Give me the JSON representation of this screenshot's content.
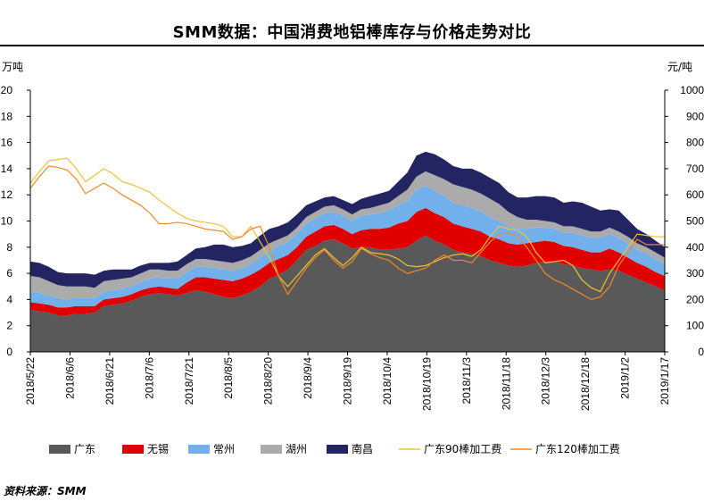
{
  "title": "SMM数据：中国消费地铝棒库存与价格走势对比",
  "source": "资料来源：SMM",
  "chart_data": {
    "type": "area",
    "left_unit": "万吨",
    "right_unit": "元/吨",
    "ylim_left": [
      0,
      20
    ],
    "ylim_right": [
      0,
      1000
    ],
    "yticks_left": [
      0,
      2,
      4,
      6,
      8,
      10,
      12,
      14,
      16,
      18,
      20
    ],
    "yticks_right": [
      0,
      100,
      200,
      300,
      400,
      500,
      600,
      700,
      800,
      900,
      1000
    ],
    "x_tick_labels": [
      "2018/5/22",
      "2018/6/6",
      "2018/6/21",
      "2018/7/6",
      "2018/7/21",
      "2018/8/5",
      "2018/8/20",
      "2018/9/4",
      "2018/9/19",
      "2018/10/4",
      "2018/10/19",
      "2018/11/3",
      "2018/11/18",
      "2018/12/3",
      "2018/12/18",
      "2019/1/2",
      "2019/1/17"
    ],
    "x": [
      "2018/5/22",
      "2018/5/26",
      "2018/5/29",
      "2018/6/1",
      "2018/6/5",
      "2018/6/8",
      "2018/6/12",
      "2018/6/15",
      "2018/6/19",
      "2018/6/22",
      "2018/6/26",
      "2018/6/29",
      "2018/7/3",
      "2018/7/6",
      "2018/7/10",
      "2018/7/13",
      "2018/7/17",
      "2018/7/20",
      "2018/7/24",
      "2018/7/27",
      "2018/7/31",
      "2018/8/3",
      "2018/8/7",
      "2018/8/10",
      "2018/8/14",
      "2018/8/17",
      "2018/8/21",
      "2018/8/24",
      "2018/8/28",
      "2018/8/31",
      "2018/9/4",
      "2018/9/7",
      "2018/9/11",
      "2018/9/14",
      "2018/9/18",
      "2018/9/21",
      "2018/9/25",
      "2018/9/28",
      "2018/10/2",
      "2018/10/5",
      "2018/10/9",
      "2018/10/12",
      "2018/10/16",
      "2018/10/19",
      "2018/10/23",
      "2018/10/26",
      "2018/10/30",
      "2018/11/2",
      "2018/11/6",
      "2018/11/9",
      "2018/11/13",
      "2018/11/16",
      "2018/11/20",
      "2018/11/23",
      "2018/11/27",
      "2018/11/30",
      "2018/12/4",
      "2018/12/7",
      "2018/12/11",
      "2018/12/14",
      "2018/12/18",
      "2018/12/21",
      "2018/12/25",
      "2018/12/28",
      "2019/1/1",
      "2019/1/4",
      "2019/1/8",
      "2019/1/11",
      "2019/1/15",
      "2019/1/18"
    ],
    "series": [
      {
        "name": "广东",
        "kind": "area",
        "axis": "left",
        "color": "#595959",
        "values": [
          3.2,
          3.1,
          3.0,
          2.8,
          2.8,
          2.9,
          2.9,
          3.0,
          3.5,
          3.6,
          3.7,
          3.9,
          4.2,
          4.4,
          4.5,
          4.4,
          4.3,
          4.5,
          4.7,
          4.6,
          4.4,
          4.2,
          4.1,
          4.3,
          4.6,
          5.0,
          5.6,
          5.9,
          6.3,
          7.0,
          7.8,
          8.1,
          8.5,
          8.6,
          8.3,
          7.9,
          8.0,
          8.0,
          7.8,
          7.8,
          7.9,
          8.0,
          8.5,
          8.9,
          8.5,
          8.2,
          7.8,
          7.6,
          7.5,
          7.3,
          7.0,
          6.8,
          6.6,
          6.5,
          6.6,
          6.8,
          6.9,
          6.9,
          6.7,
          6.6,
          6.4,
          6.3,
          6.2,
          6.3,
          6.2,
          5.9,
          5.6,
          5.3,
          5.0,
          4.7
        ]
      },
      {
        "name": "无锡",
        "kind": "area",
        "axis": "left",
        "color": "#e00000",
        "values": [
          0.6,
          0.6,
          0.6,
          0.6,
          0.6,
          0.6,
          0.6,
          0.5,
          0.5,
          0.5,
          0.5,
          0.5,
          0.5,
          0.5,
          0.5,
          0.5,
          0.5,
          0.8,
          1.0,
          1.1,
          1.2,
          1.3,
          1.3,
          1.3,
          1.3,
          1.3,
          1.2,
          1.2,
          1.1,
          1.0,
          1.0,
          1.1,
          1.1,
          1.1,
          1.1,
          1.1,
          1.3,
          1.4,
          1.6,
          1.7,
          1.9,
          2.0,
          2.2,
          2.1,
          2.1,
          2.1,
          2.0,
          2.0,
          1.9,
          1.9,
          1.8,
          1.8,
          1.7,
          1.7,
          1.7,
          1.6,
          1.6,
          1.5,
          1.4,
          1.4,
          1.4,
          1.3,
          1.4,
          1.6,
          1.4,
          1.3,
          1.2,
          1.2,
          1.1,
          1.1
        ]
      },
      {
        "name": "常州",
        "kind": "area",
        "axis": "left",
        "color": "#72b0ec",
        "values": [
          0.8,
          0.8,
          0.7,
          0.7,
          0.6,
          0.6,
          0.6,
          0.6,
          0.6,
          0.6,
          0.6,
          0.6,
          0.6,
          0.7,
          0.7,
          0.7,
          0.8,
          0.8,
          0.8,
          0.8,
          0.8,
          0.8,
          0.8,
          0.8,
          0.8,
          0.9,
          0.9,
          1.0,
          1.0,
          1.0,
          1.0,
          1.0,
          1.0,
          1.0,
          1.0,
          1.0,
          1.1,
          1.1,
          1.2,
          1.3,
          1.4,
          1.5,
          1.7,
          1.7,
          1.7,
          1.6,
          1.6,
          1.6,
          1.6,
          1.5,
          1.5,
          1.4,
          1.3,
          1.2,
          1.1,
          1.1,
          1.0,
          1.0,
          1.0,
          1.1,
          1.1,
          1.1,
          1.1,
          1.1,
          1.1,
          1.1,
          1.0,
          1.0,
          1.0,
          0.9
        ]
      },
      {
        "name": "湖州",
        "kind": "area",
        "axis": "left",
        "color": "#ababab",
        "values": [
          1.2,
          1.2,
          1.1,
          1.0,
          1.0,
          0.9,
          0.9,
          0.8,
          0.8,
          0.8,
          0.8,
          0.7,
          0.7,
          0.7,
          0.6,
          0.6,
          0.6,
          0.6,
          0.6,
          0.6,
          0.6,
          0.6,
          0.6,
          0.6,
          0.6,
          0.6,
          0.6,
          0.5,
          0.5,
          0.5,
          0.5,
          0.5,
          0.5,
          0.5,
          0.5,
          0.5,
          0.5,
          0.5,
          0.6,
          0.6,
          0.7,
          0.9,
          1.0,
          1.1,
          1.2,
          1.3,
          1.4,
          1.4,
          1.4,
          1.4,
          1.4,
          1.3,
          1.1,
          0.9,
          0.7,
          0.6,
          0.5,
          0.5,
          0.5,
          0.5,
          0.5,
          0.5,
          0.5,
          0.5,
          0.5,
          0.5,
          0.5,
          0.5,
          0.5,
          0.5
        ]
      },
      {
        "name": "南昌",
        "kind": "area",
        "axis": "left",
        "color": "#232462",
        "values": [
          1.1,
          1.1,
          1.1,
          1.0,
          1.0,
          1.0,
          1.0,
          1.0,
          0.8,
          0.8,
          0.7,
          0.6,
          0.6,
          0.5,
          0.5,
          0.6,
          0.7,
          0.7,
          0.8,
          0.9,
          1.2,
          1.3,
          1.2,
          1.1,
          1.0,
          1.1,
          1.1,
          1.0,
          1.0,
          1.0,
          0.9,
          0.8,
          0.7,
          0.7,
          0.7,
          0.8,
          0.8,
          0.9,
          0.9,
          0.9,
          1.1,
          1.3,
          1.6,
          1.5,
          1.6,
          1.5,
          1.4,
          1.4,
          1.6,
          1.6,
          1.6,
          1.6,
          1.5,
          1.5,
          1.7,
          1.8,
          1.9,
          1.9,
          1.8,
          1.9,
          2.0,
          1.9,
          1.6,
          1.4,
          1.6,
          1.3,
          1.1,
          1.0,
          0.9,
          0.8
        ]
      },
      {
        "name": "广东90棒加工费",
        "kind": "line",
        "axis": "right",
        "color": "#f1c232",
        "values": [
          645,
          690,
          730,
          735,
          740,
          700,
          650,
          675,
          700,
          680,
          650,
          640,
          625,
          610,
          580,
          555,
          530,
          510,
          500,
          495,
          490,
          480,
          440,
          440,
          480,
          420,
          360,
          290,
          250,
          290,
          330,
          370,
          395,
          360,
          330,
          360,
          400,
          380,
          375,
          370,
          355,
          330,
          325,
          330,
          345,
          360,
          370,
          375,
          365,
          390,
          440,
          480,
          470,
          465,
          440,
          380,
          340,
          345,
          350,
          330,
          275,
          245,
          230,
          300,
          350,
          400,
          450,
          445,
          440,
          440
        ]
      },
      {
        "name": "广东120棒加工费",
        "kind": "line",
        "axis": "right",
        "color": "#f08a24",
        "values": [
          625,
          670,
          710,
          705,
          695,
          660,
          605,
          625,
          645,
          625,
          600,
          580,
          560,
          530,
          490,
          490,
          495,
          490,
          480,
          470,
          465,
          460,
          430,
          440,
          470,
          480,
          400,
          290,
          220,
          270,
          320,
          360,
          390,
          350,
          320,
          345,
          395,
          375,
          360,
          350,
          320,
          300,
          310,
          320,
          350,
          370,
          350,
          350,
          340,
          380,
          420,
          450,
          455,
          440,
          400,
          350,
          300,
          275,
          260,
          240,
          220,
          200,
          210,
          250,
          330,
          380,
          430,
          410,
          410,
          410
        ]
      }
    ],
    "legend_position": "bottom",
    "grid": false
  }
}
